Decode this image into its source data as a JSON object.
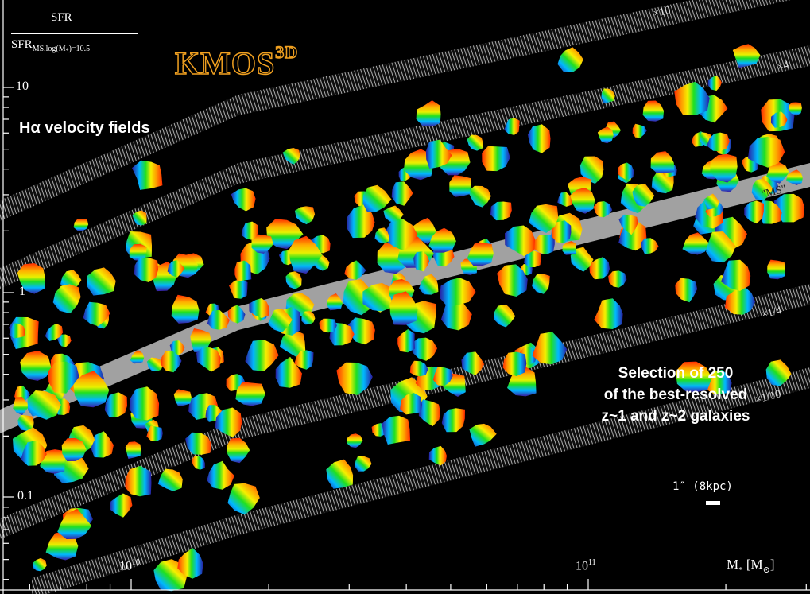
{
  "figure": {
    "ylabel_num": "SFR",
    "ylabel_den_main": "SFR",
    "ylabel_den_sub": "MS,log(M",
    "ylabel_den_sub2": "*",
    "ylabel_den_sub3": ")=10.5",
    "logo": "KMOS",
    "logo_sup": "3D",
    "subtitle": "Hα velocity fields",
    "y_ticks": [
      "10",
      "1",
      "0.1"
    ],
    "x_tick_base": "10",
    "x_tick_exp_1": "10",
    "x_tick_exp_2": "11",
    "xlabel_main": "M",
    "xlabel_sub": "*",
    "xlabel_unit": "[M",
    "xlabel_unit_sub": "⊙",
    "xlabel_unit_end": "]",
    "band_labels": {
      "x10": "×10",
      "x4": "×4",
      "ms": "\"MS\"",
      "x1_4": "×1/4",
      "x1_10": "×1/10"
    },
    "selection_text": [
      "Selection of 250",
      "of the best-resolved",
      "z~1 and z~2 galaxies"
    ],
    "scale_label": "1″ (8kpc)"
  },
  "colors": {
    "background": "#000000",
    "band": "#bdbdbd",
    "logo": "#f0a020",
    "text": "#ffffff"
  }
}
